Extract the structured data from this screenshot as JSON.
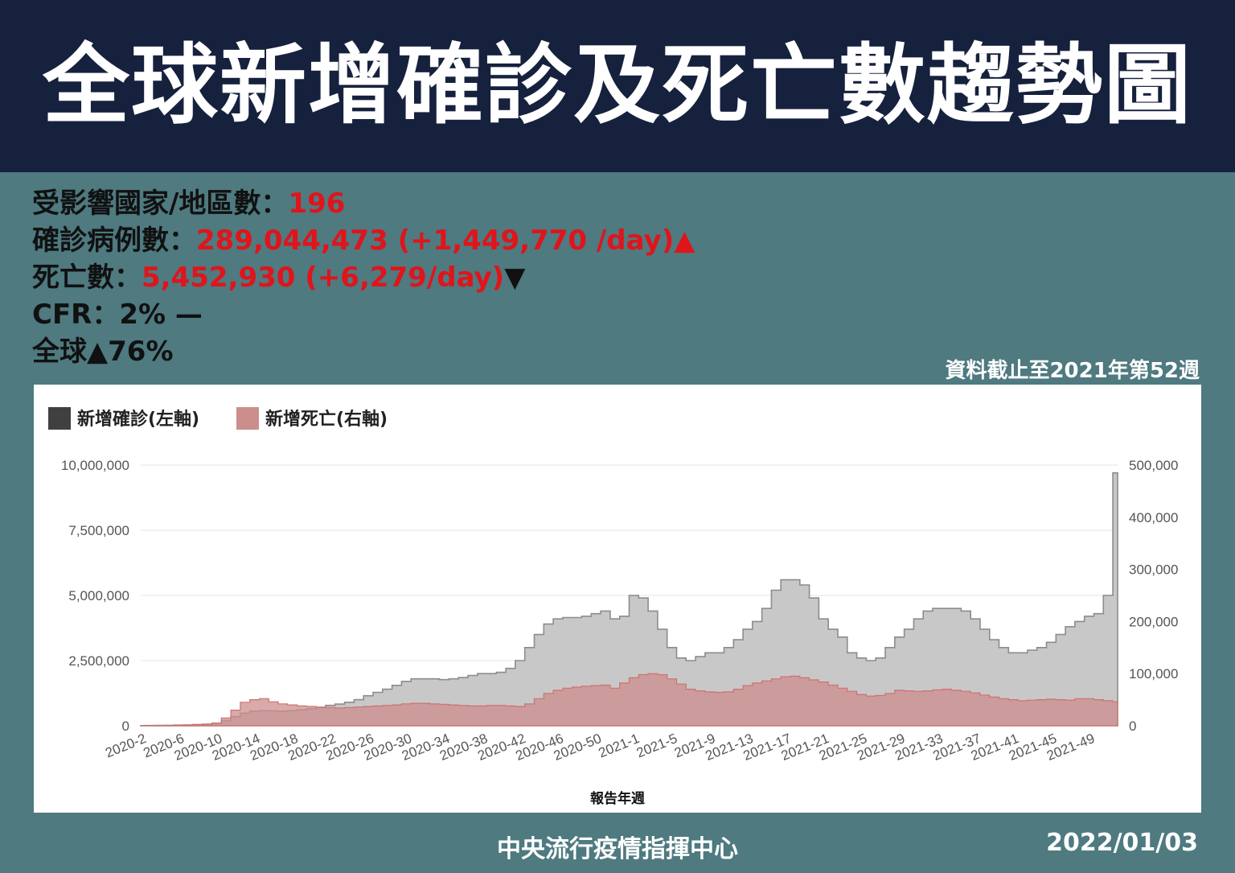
{
  "title": "全球新增確診及死亡數趨勢圖",
  "stats": {
    "countries_label": "受影響國家/地區數：",
    "countries_value": "196",
    "cases_label": "確診病例數：",
    "cases_value": "289,044,473 (+1,449,770 /day)",
    "cases_arrow": "▲",
    "deaths_label": "死亡數：",
    "deaths_value": "5,452,930 (+6,279/day)",
    "deaths_arrow": "▼",
    "cfr_text": "CFR：2% —",
    "global_text": "全球▲76%"
  },
  "as_of": "資料截止至2021年第52週",
  "footer": {
    "org": "中央流行疫情指揮中心",
    "date": "2022/01/03"
  },
  "colors": {
    "header_bg": "#16213e",
    "page_bg": "#4e7a80",
    "highlight_red": "#e0141b",
    "cases_fill": "#c8c8c8",
    "cases_line": "#8c8c8c",
    "cases_legend": "#404040",
    "deaths_fill": "#cc8e8c",
    "deaths_line": "#d07070"
  },
  "chart_data": {
    "type": "area",
    "legend": [
      {
        "label": "新增確診(左軸)"
      },
      {
        "label": "新增死亡(右軸)"
      }
    ],
    "legend_position": "top-left",
    "xlabel": "報告年週",
    "x_tick_labels": [
      "2020-2",
      "2020-6",
      "2020-10",
      "2020-14",
      "2020-18",
      "2020-22",
      "2020-26",
      "2020-30",
      "2020-34",
      "2020-38",
      "2020-42",
      "2020-46",
      "2020-50",
      "2021-1",
      "2021-5",
      "2021-9",
      "2021-13",
      "2021-17",
      "2021-21",
      "2021-25",
      "2021-29",
      "2021-33",
      "2021-37",
      "2021-41",
      "2021-45",
      "2021-49"
    ],
    "y_left": {
      "min": 0,
      "max": 10000000,
      "ticks": [
        "0",
        "2,500,000",
        "5,000,000",
        "7,500,000",
        "10,000,000"
      ]
    },
    "y_right": {
      "min": 0,
      "max": 500000,
      "ticks": [
        "0",
        "100,000",
        "200,000",
        "300,000",
        "400,000",
        "500,000"
      ]
    },
    "grid": true,
    "x": [
      "2020-2",
      "2020-3",
      "2020-4",
      "2020-5",
      "2020-6",
      "2020-7",
      "2020-8",
      "2020-9",
      "2020-10",
      "2020-11",
      "2020-12",
      "2020-13",
      "2020-14",
      "2020-15",
      "2020-16",
      "2020-17",
      "2020-18",
      "2020-19",
      "2020-20",
      "2020-21",
      "2020-22",
      "2020-23",
      "2020-24",
      "2020-25",
      "2020-26",
      "2020-27",
      "2020-28",
      "2020-29",
      "2020-30",
      "2020-31",
      "2020-32",
      "2020-33",
      "2020-34",
      "2020-35",
      "2020-36",
      "2020-37",
      "2020-38",
      "2020-39",
      "2020-40",
      "2020-41",
      "2020-42",
      "2020-43",
      "2020-44",
      "2020-45",
      "2020-46",
      "2020-47",
      "2020-48",
      "2020-49",
      "2020-50",
      "2020-51",
      "2020-52",
      "2020-53",
      "2021-1",
      "2021-2",
      "2021-3",
      "2021-4",
      "2021-5",
      "2021-6",
      "2021-7",
      "2021-8",
      "2021-9",
      "2021-10",
      "2021-11",
      "2021-12",
      "2021-13",
      "2021-14",
      "2021-15",
      "2021-16",
      "2021-17",
      "2021-18",
      "2021-19",
      "2021-20",
      "2021-21",
      "2021-22",
      "2021-23",
      "2021-24",
      "2021-25",
      "2021-26",
      "2021-27",
      "2021-28",
      "2021-29",
      "2021-30",
      "2021-31",
      "2021-32",
      "2021-33",
      "2021-34",
      "2021-35",
      "2021-36",
      "2021-37",
      "2021-38",
      "2021-39",
      "2021-40",
      "2021-41",
      "2021-42",
      "2021-43",
      "2021-44",
      "2021-45",
      "2021-46",
      "2021-47",
      "2021-48",
      "2021-49",
      "2021-50",
      "2021-51",
      "2021-52"
    ],
    "series": [
      {
        "name": "新增確診(左軸)",
        "axis": "left",
        "values": [
          5000,
          10000,
          15000,
          20000,
          25000,
          30000,
          40000,
          60000,
          100000,
          200000,
          350000,
          480000,
          560000,
          580000,
          570000,
          560000,
          580000,
          610000,
          650000,
          700000,
          780000,
          830000,
          900000,
          1000000,
          1150000,
          1280000,
          1400000,
          1550000,
          1700000,
          1800000,
          1800000,
          1800000,
          1770000,
          1800000,
          1850000,
          1930000,
          2000000,
          2000000,
          2050000,
          2200000,
          2500000,
          3000000,
          3500000,
          3900000,
          4100000,
          4150000,
          4150000,
          4200000,
          4300000,
          4400000,
          4100000,
          4200000,
          5000000,
          4900000,
          4400000,
          3700000,
          3000000,
          2600000,
          2500000,
          2650000,
          2800000,
          2800000,
          3000000,
          3300000,
          3700000,
          4000000,
          4500000,
          5200000,
          5600000,
          5600000,
          5400000,
          4900000,
          4100000,
          3700000,
          3400000,
          2800000,
          2600000,
          2500000,
          2600000,
          3000000,
          3400000,
          3700000,
          4100000,
          4400000,
          4500000,
          4500000,
          4500000,
          4400000,
          4100000,
          3700000,
          3300000,
          3000000,
          2800000,
          2800000,
          2900000,
          3000000,
          3200000,
          3500000,
          3800000,
          4000000,
          4200000,
          4300000,
          5000000,
          9700000
        ]
      },
      {
        "name": "新增死亡(右軸)",
        "axis": "right",
        "values": [
          100,
          200,
          300,
          500,
          800,
          1500,
          2500,
          3000,
          5000,
          15000,
          30000,
          45000,
          50000,
          52000,
          46000,
          42000,
          40000,
          38000,
          37000,
          36000,
          35000,
          34000,
          35000,
          36000,
          37000,
          38000,
          39000,
          40000,
          42000,
          43000,
          43000,
          42000,
          41000,
          40000,
          39000,
          38000,
          38000,
          39000,
          39000,
          38000,
          37000,
          42000,
          52000,
          62000,
          68000,
          72000,
          74000,
          76000,
          77000,
          78000,
          72000,
          82000,
          92000,
          98000,
          100000,
          98000,
          90000,
          80000,
          70000,
          67000,
          65000,
          64000,
          65000,
          70000,
          77000,
          82000,
          86000,
          90000,
          94000,
          95000,
          92000,
          88000,
          84000,
          78000,
          72000,
          66000,
          60000,
          57000,
          58000,
          62000,
          68000,
          67000,
          66000,
          67000,
          69000,
          70000,
          68000,
          66000,
          63000,
          59000,
          55000,
          52000,
          50000,
          48000,
          49000,
          50000,
          51000,
          50000,
          49000,
          52000,
          52000,
          50000,
          48000,
          46000
        ]
      }
    ]
  }
}
